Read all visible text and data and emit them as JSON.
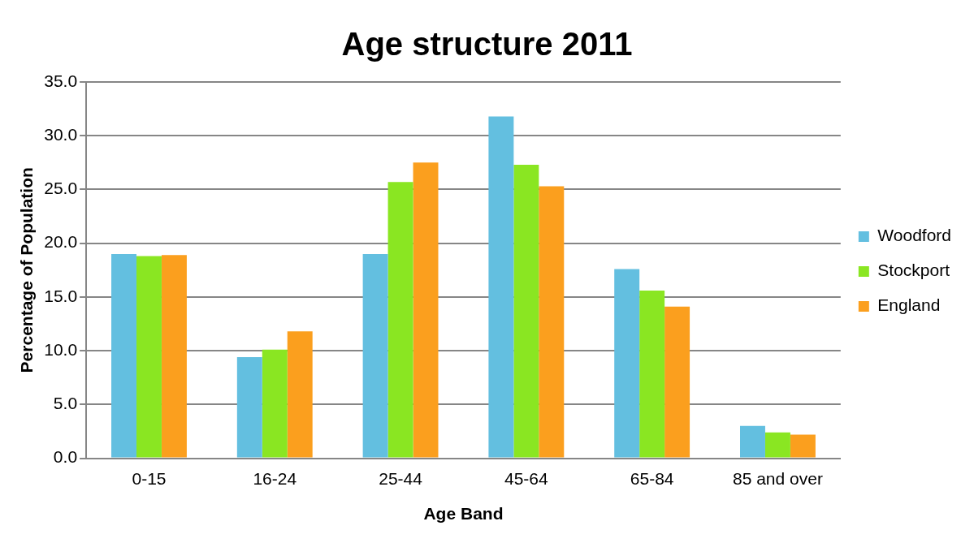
{
  "chart_data": {
    "type": "bar",
    "title": "Age structure 2011",
    "xlabel": "Age Band",
    "ylabel": "Percentage of Population",
    "categories": [
      "0-15",
      "16-24",
      "25-44",
      "45-64",
      "65-84",
      "85 and over"
    ],
    "series": [
      {
        "name": "Woodford",
        "color": "#63bfe0",
        "values": [
          19.0,
          9.4,
          19.0,
          31.8,
          17.6,
          3.0
        ]
      },
      {
        "name": "Stockport",
        "color": "#8ae622",
        "values": [
          18.8,
          10.1,
          25.7,
          27.3,
          15.6,
          2.4
        ]
      },
      {
        "name": "England",
        "color": "#fb9f1e",
        "values": [
          18.9,
          11.8,
          27.5,
          25.3,
          14.1,
          2.2
        ]
      }
    ],
    "ylim": [
      0,
      35
    ],
    "yticks": [
      {
        "value": 0,
        "label": "0.0"
      },
      {
        "value": 5,
        "label": "5.0"
      },
      {
        "value": 10,
        "label": "10.0"
      },
      {
        "value": 15,
        "label": "15.0"
      },
      {
        "value": 20,
        "label": "20.0"
      },
      {
        "value": 25,
        "label": "25.0"
      },
      {
        "value": 30,
        "label": "30.0"
      },
      {
        "value": 35,
        "label": "35.0"
      }
    ],
    "grid": "y",
    "legend": "right"
  }
}
